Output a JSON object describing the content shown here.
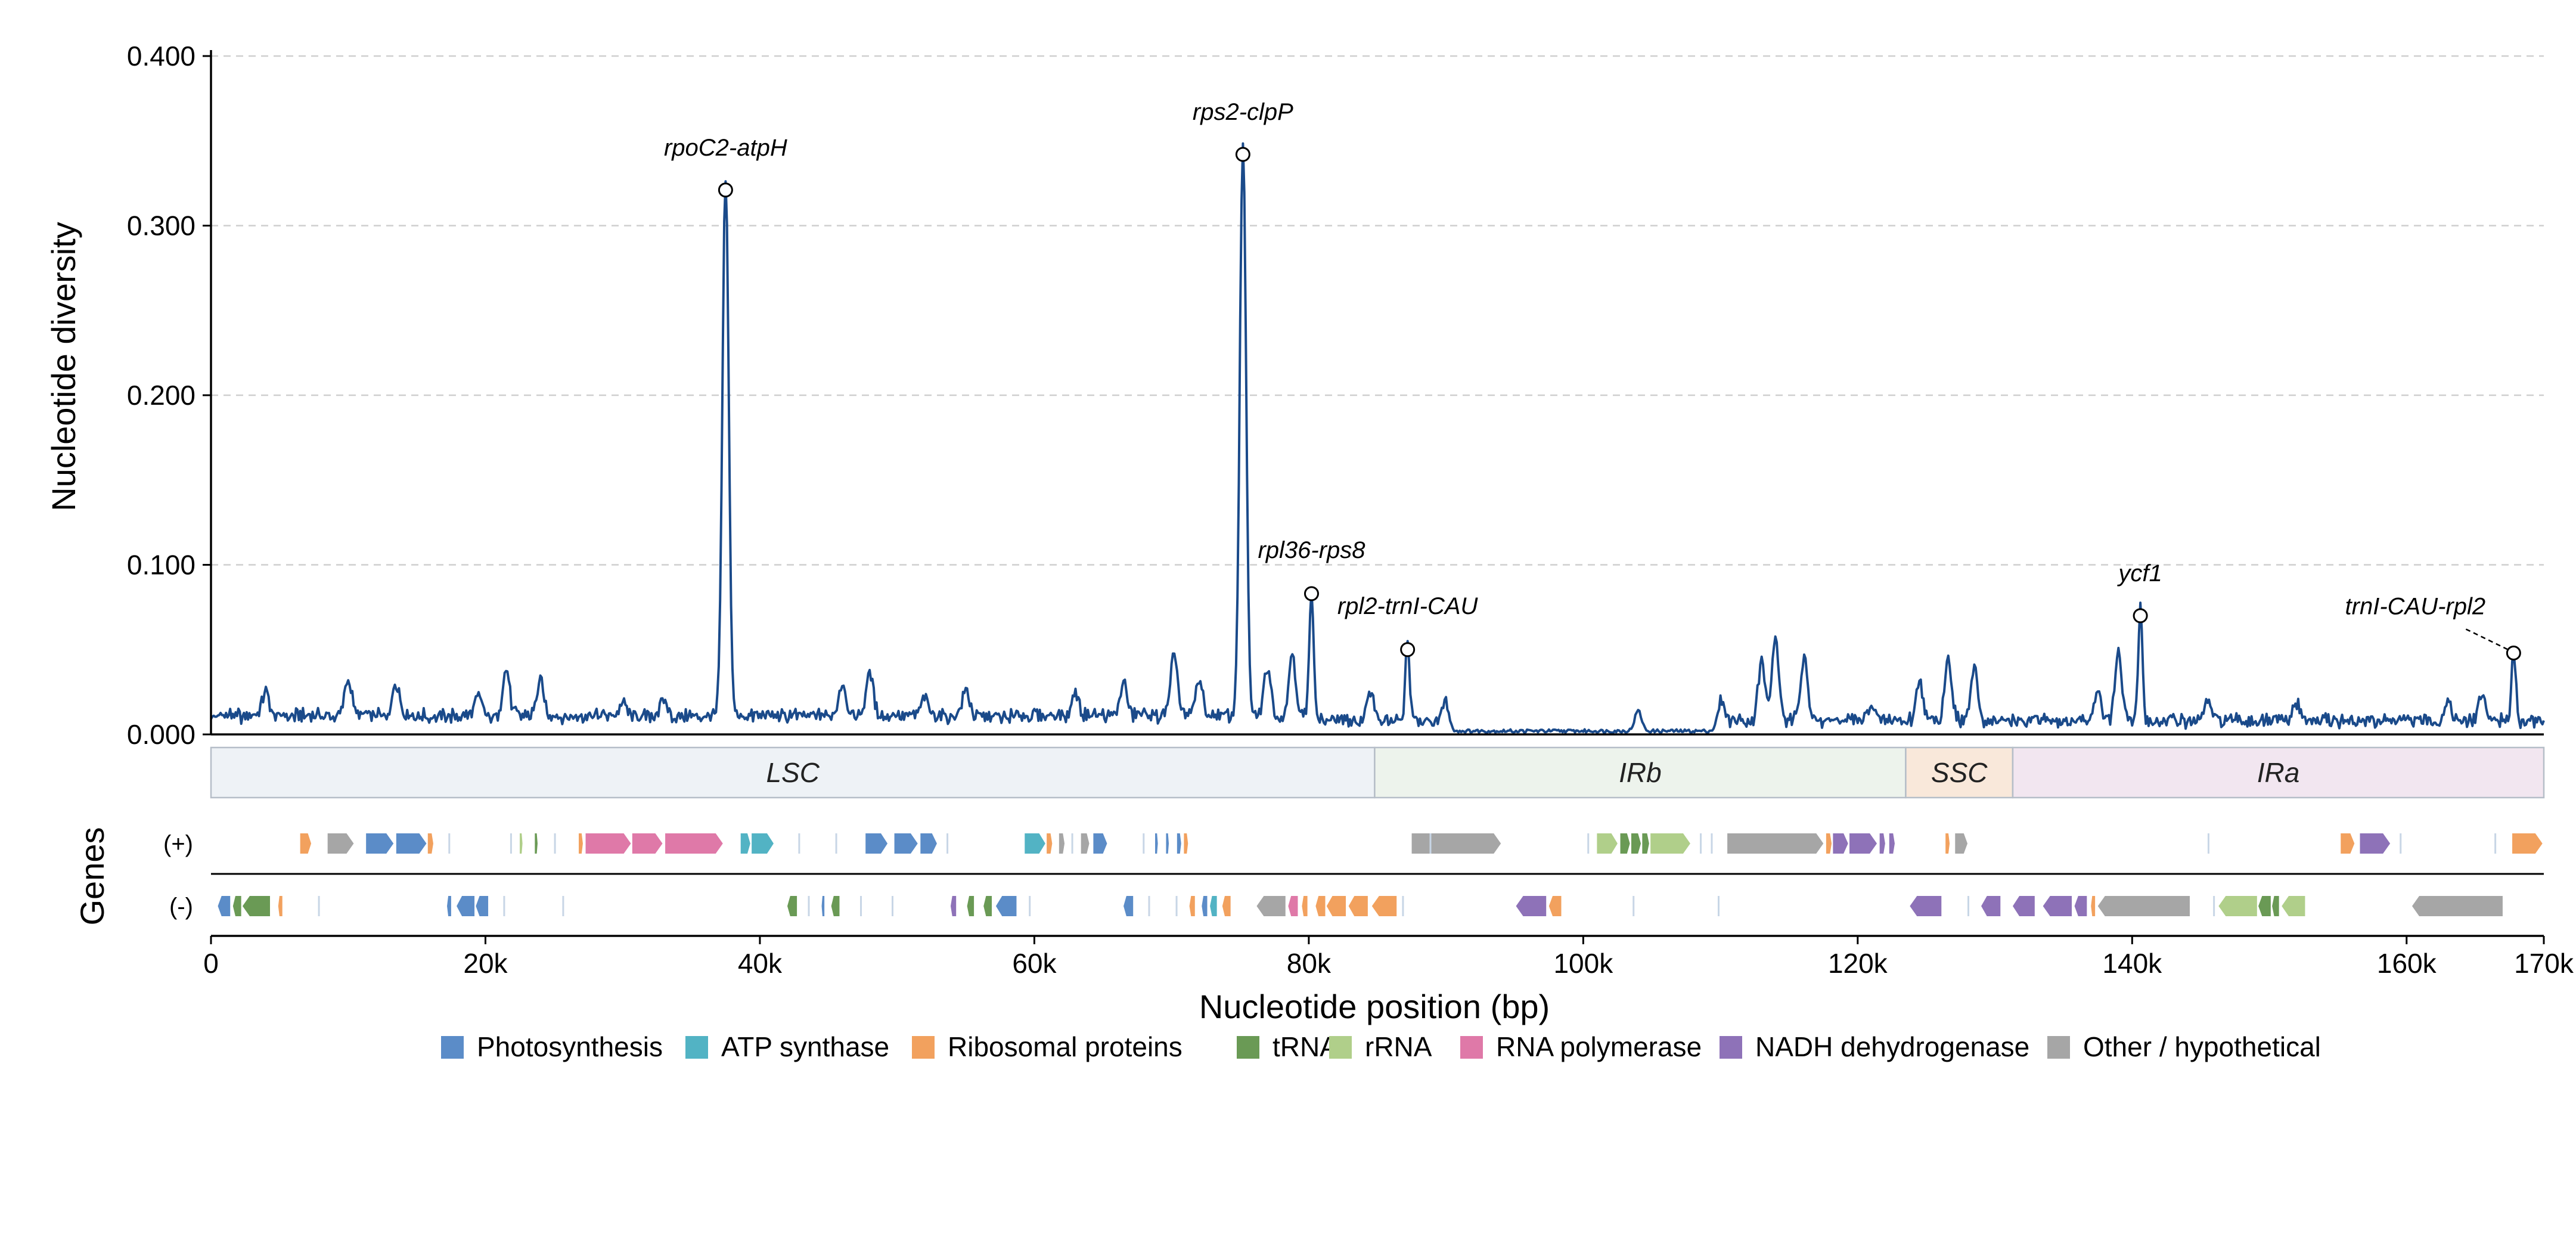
{
  "chart_data": {
    "type": "line",
    "ylabel": "Nucleotide diversity",
    "xlabel": "Nucleotide position (bp)",
    "genes_label": "Genes",
    "ylim": [
      0,
      0.4
    ],
    "xlim": [
      0,
      170000
    ],
    "y_ticks": [
      "0.000",
      "0.100",
      "0.200",
      "0.300",
      "0.400"
    ],
    "y_tick_values": [
      0,
      0.1,
      0.2,
      0.3,
      0.4
    ],
    "x_ticks": [
      "0",
      "20k",
      "40k",
      "60k",
      "80k",
      "100k",
      "120k",
      "140k",
      "170k"
    ],
    "x_tick_values": [
      0,
      20000,
      40000,
      60000,
      80000,
      100000,
      120000,
      140000,
      160000,
      170000
    ],
    "x_tick_labels_all": [
      "0",
      "20k",
      "40k",
      "60k",
      "80k",
      "100k",
      "120k",
      "140k",
      "160k",
      "170k"
    ],
    "grid": "horizontal dashed",
    "line_color": "#1a4a8a",
    "peaks": [
      {
        "label": "rpoC2-atpH",
        "x": 37500,
        "y": 0.321
      },
      {
        "label": "rps2-clpP",
        "x": 75200,
        "y": 0.342
      },
      {
        "label": "rpl36-rps8",
        "x": 80200,
        "y": 0.083
      },
      {
        "label": "rpl2-trnI-CAU",
        "x": 87200,
        "y": 0.05
      },
      {
        "label": "ycf1",
        "x": 140600,
        "y": 0.07
      },
      {
        "label": "trnI-CAU-rpl2",
        "x": 167800,
        "y": 0.048
      }
    ],
    "regions": [
      {
        "label": "LSC",
        "start": 0,
        "end": 84800,
        "color": "#eef2f6"
      },
      {
        "label": "IRb",
        "start": 84800,
        "end": 123500,
        "color": "#edf3ec"
      },
      {
        "label": "SSC",
        "start": 123500,
        "end": 131300,
        "color": "#f9e8da"
      },
      {
        "label": "IRa",
        "start": 131300,
        "end": 170000,
        "color": "#f2e6f0"
      }
    ],
    "strands": [
      "(+)",
      "(-)"
    ],
    "legend": [
      {
        "label": "Photosynthesis",
        "color": "#5b8cc8"
      },
      {
        "label": "ATP synthase",
        "color": "#52b3c4"
      },
      {
        "label": "Ribosomal proteins",
        "color": "#f2a15e"
      },
      {
        "label": "tRNA",
        "color": "#6a9a55"
      },
      {
        "label": "rRNA",
        "color": "#b0cf8a"
      },
      {
        "label": "RNA polymerase",
        "color": "#df79a8"
      },
      {
        "label": "NADH dehydrogenase",
        "color": "#8e72b8"
      },
      {
        "label": "Other / hypothetical",
        "color": "#a6a6a6"
      }
    ],
    "genes_plus": [
      {
        "start": 6500,
        "end": 7300,
        "cat": "Ribosomal proteins"
      },
      {
        "start": 8500,
        "end": 10400,
        "cat": "Other / hypothetical"
      },
      {
        "start": 11300,
        "end": 13300,
        "cat": "Photosynthesis"
      },
      {
        "start": 13500,
        "end": 15700,
        "cat": "Photosynthesis"
      },
      {
        "start": 15800,
        "end": 16200,
        "cat": "Ribosomal proteins"
      },
      {
        "start": 22500,
        "end": 22700,
        "cat": "rRNA"
      },
      {
        "start": 23600,
        "end": 23800,
        "cat": "tRNA"
      },
      {
        "start": 26800,
        "end": 27100,
        "cat": "Ribosomal proteins"
      },
      {
        "start": 27300,
        "end": 30600,
        "cat": "RNA polymerase"
      },
      {
        "start": 30700,
        "end": 32900,
        "cat": "RNA polymerase"
      },
      {
        "start": 33100,
        "end": 37300,
        "cat": "RNA polymerase"
      },
      {
        "start": 38600,
        "end": 39300,
        "cat": "ATP synthase"
      },
      {
        "start": 39400,
        "end": 41000,
        "cat": "ATP synthase"
      },
      {
        "start": 47700,
        "end": 49300,
        "cat": "Photosynthesis"
      },
      {
        "start": 49800,
        "end": 51500,
        "cat": "Photosynthesis"
      },
      {
        "start": 51700,
        "end": 52900,
        "cat": "Photosynthesis"
      },
      {
        "start": 59300,
        "end": 60800,
        "cat": "ATP synthase"
      },
      {
        "start": 60900,
        "end": 61300,
        "cat": "Ribosomal proteins"
      },
      {
        "start": 61800,
        "end": 62200,
        "cat": "Other / hypothetical"
      },
      {
        "start": 63400,
        "end": 64000,
        "cat": "Other / hypothetical"
      },
      {
        "start": 64300,
        "end": 65300,
        "cat": "Photosynthesis"
      },
      {
        "start": 68800,
        "end": 69000,
        "cat": "Photosynthesis"
      },
      {
        "start": 69600,
        "end": 69800,
        "cat": "Photosynthesis"
      },
      {
        "start": 70400,
        "end": 70700,
        "cat": "Photosynthesis"
      },
      {
        "start": 70900,
        "end": 71200,
        "cat": "Ribosomal proteins"
      },
      {
        "start": 87500,
        "end": 94000,
        "cat": "Other / hypothetical"
      },
      {
        "start": 101000,
        "end": 102500,
        "cat": "rRNA"
      },
      {
        "start": 102700,
        "end": 103400,
        "cat": "tRNA"
      },
      {
        "start": 103500,
        "end": 104200,
        "cat": "tRNA"
      },
      {
        "start": 104300,
        "end": 104800,
        "cat": "tRNA"
      },
      {
        "start": 104900,
        "end": 107800,
        "cat": "rRNA"
      },
      {
        "start": 110500,
        "end": 117500,
        "cat": "Other / hypothetical"
      },
      {
        "start": 117700,
        "end": 118100,
        "cat": "Ribosomal proteins"
      },
      {
        "start": 118200,
        "end": 119300,
        "cat": "NADH dehydrogenase"
      },
      {
        "start": 119400,
        "end": 121400,
        "cat": "NADH dehydrogenase"
      },
      {
        "start": 121600,
        "end": 122000,
        "cat": "NADH dehydrogenase"
      },
      {
        "start": 122300,
        "end": 122700,
        "cat": "NADH dehydrogenase"
      },
      {
        "start": 126400,
        "end": 126700,
        "cat": "Ribosomal proteins"
      },
      {
        "start": 127100,
        "end": 128000,
        "cat": "Other / hypothetical"
      },
      {
        "start": 155200,
        "end": 156200,
        "cat": "Ribosomal proteins"
      },
      {
        "start": 156600,
        "end": 158800,
        "cat": "NADH dehydrogenase"
      },
      {
        "start": 167700,
        "end": 169900,
        "cat": "Ribosomal proteins"
      }
    ],
    "genes_minus": [
      {
        "start": 500,
        "end": 1400,
        "cat": "Photosynthesis"
      },
      {
        "start": 1600,
        "end": 2200,
        "cat": "tRNA"
      },
      {
        "start": 2300,
        "end": 4300,
        "cat": "tRNA"
      },
      {
        "start": 4900,
        "end": 5200,
        "cat": "Ribosomal proteins"
      },
      {
        "start": 17200,
        "end": 17500,
        "cat": "Photosynthesis"
      },
      {
        "start": 17900,
        "end": 19200,
        "cat": "Photosynthesis"
      },
      {
        "start": 19300,
        "end": 20200,
        "cat": "Photosynthesis"
      },
      {
        "start": 42000,
        "end": 42700,
        "cat": "tRNA"
      },
      {
        "start": 44500,
        "end": 44700,
        "cat": "Photosynthesis"
      },
      {
        "start": 45200,
        "end": 45800,
        "cat": "tRNA"
      },
      {
        "start": 53900,
        "end": 54300,
        "cat": "NADH dehydrogenase"
      },
      {
        "start": 55100,
        "end": 55600,
        "cat": "tRNA"
      },
      {
        "start": 56300,
        "end": 56900,
        "cat": "tRNA"
      },
      {
        "start": 57200,
        "end": 58700,
        "cat": "Photosynthesis"
      },
      {
        "start": 66500,
        "end": 67200,
        "cat": "Photosynthesis"
      },
      {
        "start": 71300,
        "end": 71700,
        "cat": "Ribosomal proteins"
      },
      {
        "start": 72200,
        "end": 72600,
        "cat": "Photosynthesis"
      },
      {
        "start": 72800,
        "end": 73300,
        "cat": "ATP synthase"
      },
      {
        "start": 73700,
        "end": 74300,
        "cat": "Ribosomal proteins"
      },
      {
        "start": 76200,
        "end": 78300,
        "cat": "Other / hypothetical"
      },
      {
        "start": 78500,
        "end": 79200,
        "cat": "RNA polymerase"
      },
      {
        "start": 79500,
        "end": 79900,
        "cat": "Ribosomal proteins"
      },
      {
        "start": 80500,
        "end": 81200,
        "cat": "Ribosomal proteins"
      },
      {
        "start": 81300,
        "end": 82700,
        "cat": "Ribosomal proteins"
      },
      {
        "start": 82900,
        "end": 84300,
        "cat": "Ribosomal proteins"
      },
      {
        "start": 84600,
        "end": 86400,
        "cat": "Ribosomal proteins"
      },
      {
        "start": 95100,
        "end": 97300,
        "cat": "NADH dehydrogenase"
      },
      {
        "start": 97500,
        "end": 98400,
        "cat": "Ribosomal proteins"
      },
      {
        "start": 123800,
        "end": 126100,
        "cat": "NADH dehydrogenase"
      },
      {
        "start": 129000,
        "end": 130400,
        "cat": "NADH dehydrogenase"
      },
      {
        "start": 131300,
        "end": 132900,
        "cat": "NADH dehydrogenase"
      },
      {
        "start": 133500,
        "end": 135600,
        "cat": "NADH dehydrogenase"
      },
      {
        "start": 135800,
        "end": 136700,
        "cat": "NADH dehydrogenase"
      },
      {
        "start": 137000,
        "end": 137300,
        "cat": "Ribosomal proteins"
      },
      {
        "start": 137500,
        "end": 144200,
        "cat": "Other / hypothetical"
      },
      {
        "start": 146300,
        "end": 149100,
        "cat": "rRNA"
      },
      {
        "start": 149200,
        "end": 150100,
        "cat": "tRNA"
      },
      {
        "start": 150200,
        "end": 150700,
        "cat": "tRNA"
      },
      {
        "start": 150900,
        "end": 152600,
        "cat": "rRNA"
      },
      {
        "start": 160400,
        "end": 167000,
        "cat": "Other / hypothetical"
      }
    ]
  }
}
